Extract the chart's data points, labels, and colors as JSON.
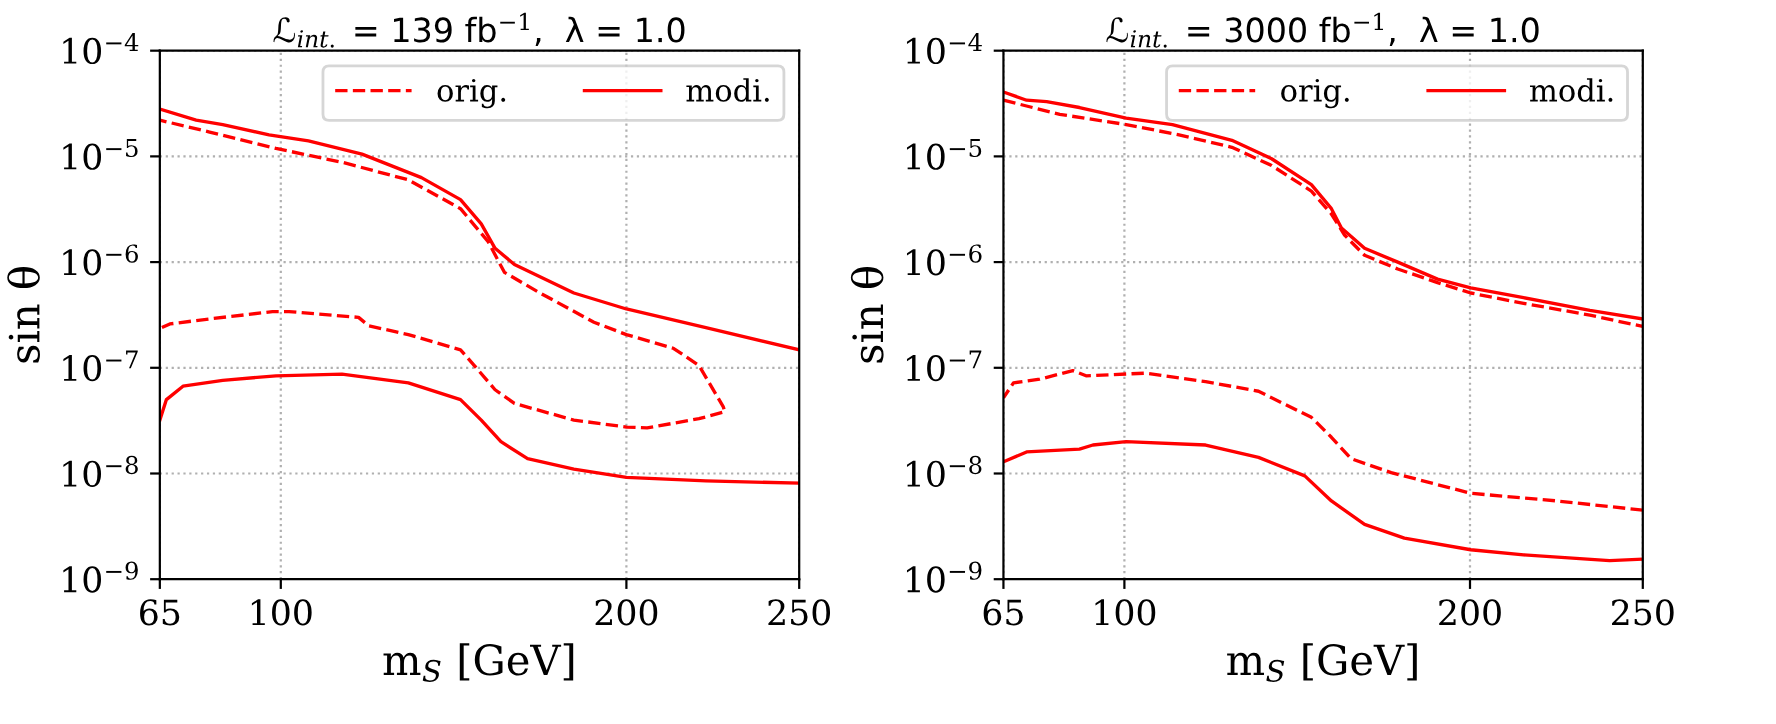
{
  "chart_data": [
    {
      "type": "line",
      "title": "ℒ$_{int.}$ = 139 fb$^{−1}$,  λ = 1.0",
      "xlabel": "m$_{S}$ [GeV]",
      "ylabel": "sin θ",
      "log": "y",
      "grid": true,
      "legend": "top right",
      "xlim": [
        65,
        250
      ],
      "xticks": [
        65,
        100,
        200,
        250
      ],
      "ylim": [
        1e-09,
        0.0001
      ],
      "yticks": [
        {
          "value": 1e-09,
          "label": "10$^{−9}$"
        },
        {
          "value": 1e-08,
          "label": "10$^{−8}$"
        },
        {
          "value": 1e-07,
          "label": "10$^{−7}$"
        },
        {
          "value": 1e-06,
          "label": "10$^{−6}$"
        },
        {
          "value": 1e-05,
          "label": "10$^{−5}$"
        },
        {
          "value": 0.0001,
          "label": "10$^{−4}$"
        }
      ],
      "series": [
        {
          "name": "orig.",
          "color": "#ff0000",
          "line_style": "dashed",
          "x": [
            65.6,
            67.9,
            79.4,
            97.6,
            102.4,
            122.5,
            125.4,
            136.9,
            152,
            156,
            162,
            167.6,
            184.8,
            200,
            206,
            221,
            228.5,
            228,
            221,
            213.6,
            200,
            190.6,
            175,
            164.7,
            160,
            152,
            136.9,
            117.7,
            98.6,
            79.4,
            65
          ],
          "values": [
            2.4e-07,
            2.6e-07,
            2.9e-07,
            3.4e-07,
            3.4e-07,
            3e-07,
            2.5e-07,
            2.06e-07,
            1.48e-07,
            1.05e-07,
            6.2e-08,
            4.6e-08,
            3.2e-08,
            2.75e-08,
            2.7e-08,
            3.3e-08,
            3.84e-08,
            4.3e-08,
            1.05e-07,
            1.53e-07,
            2.06e-07,
            2.7e-07,
            5.1e-07,
            8e-07,
            1.56e-06,
            3.2e-06,
            6e-06,
            8.8e-06,
            1.19e-05,
            1.7e-05,
            2.2e-05
          ]
        },
        {
          "name": "modi.",
          "color": "#ff0000",
          "line_style": "solid",
          "x": [
            65,
            75.5,
            83.2,
            96.6,
            108,
            123.5,
            140.7,
            152,
            158,
            162,
            167.6,
            184.8,
            200,
            223,
            250
          ],
          "values": [
            2.8e-05,
            2.2e-05,
            2e-05,
            1.6e-05,
            1.4e-05,
            1.05e-05,
            6.3e-06,
            3.9e-06,
            2.3e-06,
            1.35e-06,
            9.5e-07,
            5.1e-07,
            3.6e-07,
            2.4e-07,
            1.48e-07
          ]
        },
        {
          "color": "#ff0000",
          "line_style": "solid",
          "x": [
            250,
            223,
            200,
            184.8,
            171.4,
            163.7,
            158,
            152,
            136.9,
            117.7,
            98.6,
            83.2,
            71.7,
            66.9,
            65
          ],
          "values": [
            8.1e-09,
            8.5e-09,
            9.2e-09,
            1.1e-08,
            1.38e-08,
            2e-08,
            3.2e-08,
            5e-08,
            7.2e-08,
            8.7e-08,
            8.4e-08,
            7.6e-08,
            6.7e-08,
            5e-08,
            3.2e-08
          ]
        }
      ]
    },
    {
      "type": "line",
      "title": "ℒ$_{int.}$ = 3000 fb$^{−1}$,  λ = 1.0",
      "xlabel": "m$_{S}$ [GeV]",
      "ylabel": "sin θ",
      "log": "y",
      "grid": true,
      "legend": "top right",
      "xlim": [
        65,
        250
      ],
      "xticks": [
        65,
        100,
        200,
        250
      ],
      "ylim": [
        1e-09,
        0.0001
      ],
      "yticks": [
        {
          "value": 1e-09,
          "label": "10$^{−9}$"
        },
        {
          "value": 1e-08,
          "label": "10$^{−8}$"
        },
        {
          "value": 1e-07,
          "label": "10$^{−7}$"
        },
        {
          "value": 1e-06,
          "label": "10$^{−6}$"
        },
        {
          "value": 1e-05,
          "label": "10$^{−5}$"
        },
        {
          "value": 0.0001,
          "label": "10$^{−4}$"
        }
      ],
      "series": [
        {
          "name": "orig.",
          "color": "#ff0000",
          "line_style": "dashed",
          "x": [
            65,
            81.3,
            100.5,
            115.8,
            131.1,
            142.6,
            154.1,
            159.9,
            163.7,
            169.5,
            179.1,
            190.6,
            200.2,
            215.5,
            234.7,
            250
          ],
          "values": [
            3.4e-05,
            2.5e-05,
            2e-05,
            1.6e-05,
            1.22e-05,
            8.2e-06,
            4.7e-06,
            2.85e-06,
            1.8e-06,
            1.16e-06,
            8.6e-07,
            6.4e-07,
            5.1e-07,
            4.07e-07,
            3.15e-07,
            2.46e-07
          ]
        },
        {
          "color": "#ff0000",
          "line_style": "dashed",
          "x": [
            250,
            225.1,
            200.2,
            177.2,
            165.6,
            159.9,
            154.1,
            138.8,
            123.5,
            106.2,
            88.9,
            85.1,
            75.5,
            67.9,
            65
          ],
          "values": [
            4.5e-09,
            5.5e-09,
            6.5e-09,
            1.02e-08,
            1.38e-08,
            2.2e-08,
            3.4e-08,
            6e-08,
            7.4e-08,
            8.9e-08,
            8.4e-08,
            9.4e-08,
            7.8e-08,
            7.2e-08,
            5.2e-08
          ]
        },
        {
          "name": "modi.",
          "color": "#ff0000",
          "line_style": "solid",
          "x": [
            65,
            71.7,
            77.5,
            87,
            100.5,
            113.9,
            131.1,
            142.6,
            154.1,
            159.9,
            162.8,
            169.5,
            179.1,
            190.6,
            200.2,
            215.5,
            234.7,
            250
          ],
          "values": [
            4.07e-05,
            3.4e-05,
            3.3e-05,
            2.9e-05,
            2.3e-05,
            2e-05,
            1.42e-05,
            9.5e-06,
            5.4e-06,
            3.2e-06,
            2.1e-06,
            1.35e-06,
            1e-06,
            6.9e-07,
            5.7e-07,
            4.6e-07,
            3.5e-07,
            2.9e-07
          ]
        },
        {
          "color": "#ff0000",
          "line_style": "solid",
          "x": [
            250,
            240.4,
            215.5,
            200.2,
            181,
            169.5,
            159.9,
            152.2,
            138.8,
            123.5,
            100.5,
            90.9,
            87,
            71.7,
            65
          ],
          "values": [
            1.55e-09,
            1.5e-09,
            1.7e-09,
            1.9e-09,
            2.45e-09,
            3.3e-09,
            5.5e-09,
            9.5e-09,
            1.42e-08,
            1.86e-08,
            2e-08,
            1.86e-08,
            1.7e-08,
            1.6e-08,
            1.29e-08
          ]
        }
      ]
    }
  ]
}
